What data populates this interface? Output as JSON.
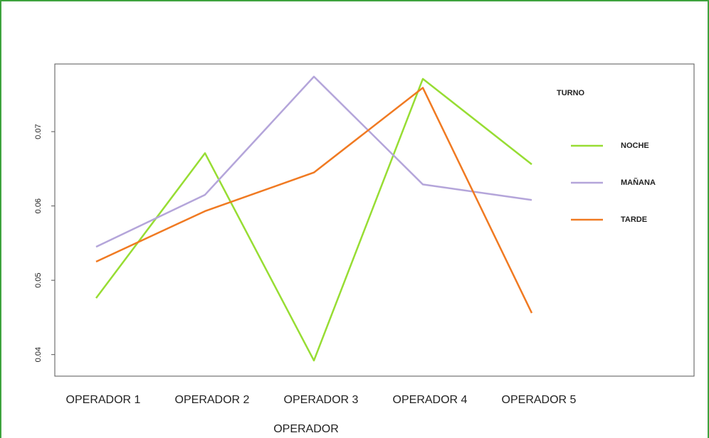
{
  "chart_data": {
    "type": "line",
    "categories": [
      "OPERADOR 1",
      "OPERADOR 2",
      "OPERADOR 3",
      "OPERADOR 4",
      "OPERADOR 5"
    ],
    "x_label": "OPERADOR",
    "legend_title": "TURNO",
    "legend": "right",
    "series": [
      {
        "name": "NOCHE",
        "color": "#97dd33",
        "values": [
          0.0476,
          0.0671,
          0.0392,
          0.0771,
          0.0656
        ]
      },
      {
        "name": "MAÑANA",
        "color": "#b4a5da",
        "values": [
          0.0545,
          0.0615,
          0.0774,
          0.0629,
          0.0608
        ]
      },
      {
        "name": "TARDE",
        "color": "#f07a22",
        "values": [
          0.0525,
          0.0593,
          0.0645,
          0.0759,
          0.0456
        ]
      }
    ],
    "ylim": [
      0.0371,
      0.0791
    ],
    "yticks": [
      0.04,
      0.05,
      0.06,
      0.07
    ],
    "grid": false
  }
}
